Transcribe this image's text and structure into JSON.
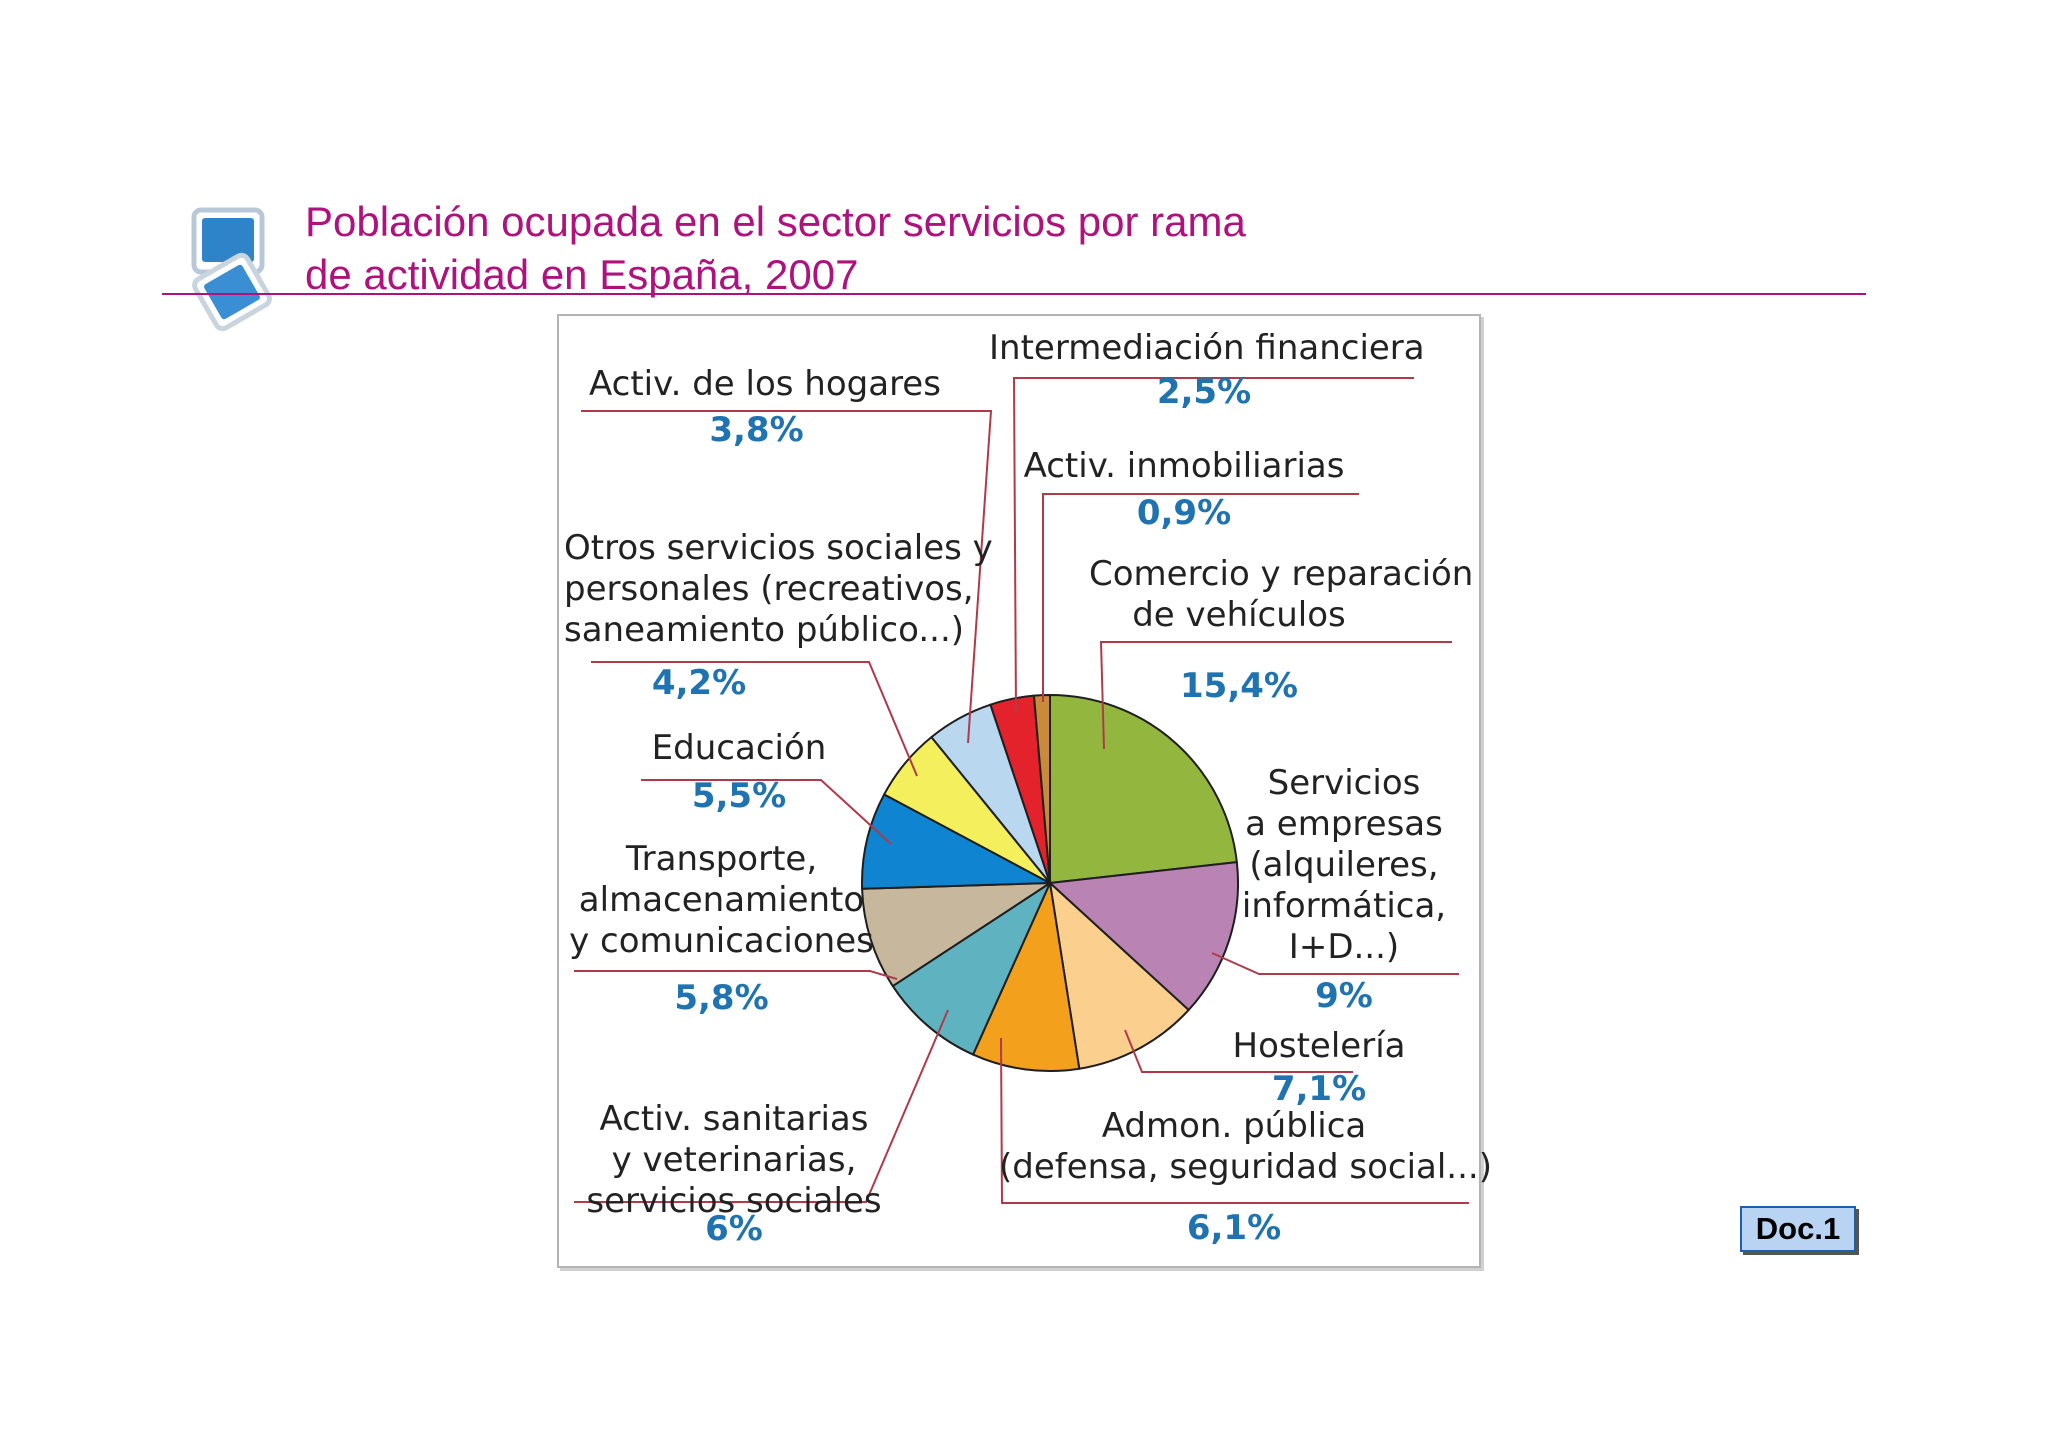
{
  "header": {
    "title_line1": "Población ocupada en el sector servicios por rama",
    "title_line2": "de actividad en España, 2007"
  },
  "badge": {
    "label": "Doc.1"
  },
  "chart_data": {
    "type": "pie",
    "title": "Población ocupada en el sector servicios por rama de actividad en España, 2007",
    "unit": "%",
    "slices": [
      {
        "label": "Comercio y reparación de vehículos",
        "pct_text": "15,4%",
        "value": 15.4,
        "color": "#93b73e"
      },
      {
        "label": "Servicios a empresas (alquileres, informática, I+D...)",
        "pct_text": "9%",
        "value": 9.0,
        "color": "#b984b3"
      },
      {
        "label": "Hostelería",
        "pct_text": "7,1%",
        "value": 7.1,
        "color": "#fbd08e"
      },
      {
        "label": "Admon. pública (defensa, seguridad social...)",
        "pct_text": "6,1%",
        "value": 6.1,
        "color": "#f3a11d"
      },
      {
        "label": "Activ. sanitarias y veterinarias, servicios sociales",
        "pct_text": "6%",
        "value": 6.0,
        "color": "#5fb2bf"
      },
      {
        "label": "Transporte, almacenamiento y comunicaciones",
        "pct_text": "5,8%",
        "value": 5.8,
        "color": "#c6b79d"
      },
      {
        "label": "Educación",
        "pct_text": "5,5%",
        "value": 5.5,
        "color": "#0f84d0"
      },
      {
        "label": "Otros servicios sociales y personales (recreativos, saneamiento público...)",
        "pct_text": "4,2%",
        "value": 4.2,
        "color": "#f4ef5c"
      },
      {
        "label": "Activ. de los hogares",
        "pct_text": "3,8%",
        "value": 3.8,
        "color": "#b9d7ef"
      },
      {
        "label": "Intermediación financiera",
        "pct_text": "2,5%",
        "value": 2.5,
        "color": "#e3222b"
      },
      {
        "label": "Activ. inmobiliarias",
        "pct_text": "0,9%",
        "value": 0.9,
        "color": "#c98a3a"
      }
    ]
  }
}
